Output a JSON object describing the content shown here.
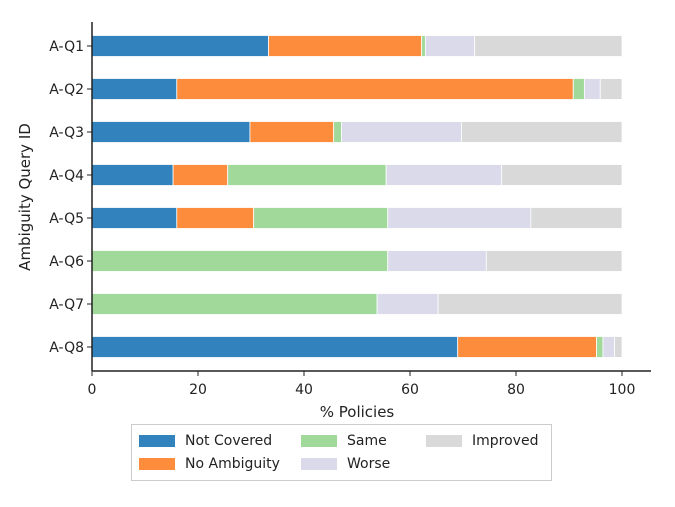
{
  "chart_data": {
    "type": "bar",
    "orientation": "horizontal",
    "stacked": true,
    "title": "",
    "xlabel": "% Policies",
    "ylabel": "Ambiguity Query ID",
    "xlim": [
      0,
      100
    ],
    "xticks": [
      0,
      20,
      40,
      60,
      80,
      100
    ],
    "grid": false,
    "legend_position": "bottom",
    "categories": [
      "A-Q1",
      "A-Q2",
      "A-Q3",
      "A-Q4",
      "A-Q5",
      "A-Q6",
      "A-Q7",
      "A-Q8"
    ],
    "series": [
      {
        "name": "Not Covered",
        "color": "#3182bd",
        "values": [
          33.3,
          16.0,
          29.8,
          15.3,
          16.0,
          0,
          0,
          69.0
        ]
      },
      {
        "name": "No Ambiguity",
        "color": "#fd8d3c",
        "values": [
          28.9,
          74.8,
          15.8,
          10.3,
          14.5,
          0,
          0,
          26.2
        ]
      },
      {
        "name": "Same",
        "color": "#a1d99b",
        "values": [
          0.7,
          2.1,
          1.5,
          29.9,
          25.3,
          55.8,
          53.8,
          1.2
        ]
      },
      {
        "name": "Worse",
        "color": "#dadaeb",
        "values": [
          9.3,
          3.0,
          22.6,
          21.8,
          27.0,
          18.6,
          11.5,
          2.2
        ]
      },
      {
        "name": "Improved",
        "color": "#d9d9d9",
        "values": [
          27.8,
          4.1,
          30.3,
          22.7,
          17.2,
          25.6,
          34.7,
          1.4
        ]
      }
    ]
  },
  "legend_items": [
    "Not Covered",
    "No Ambiguity",
    "Same",
    "Worse",
    "Improved"
  ]
}
